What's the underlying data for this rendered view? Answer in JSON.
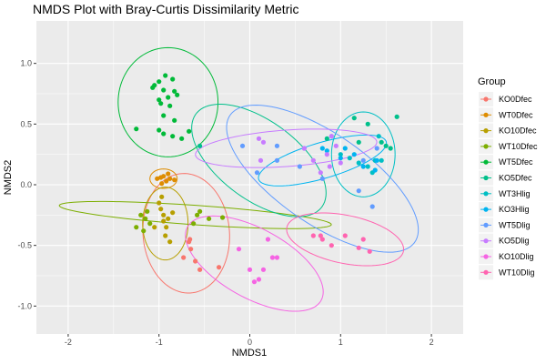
{
  "chart_data": {
    "type": "scatter",
    "title": "NMDS Plot with Bray-Curtis Dissimilarity Metric",
    "xlabel": "NMDS1",
    "ylabel": "NMDS2",
    "xlim": [
      -2.35,
      2.35
    ],
    "ylim": [
      -1.23,
      1.35
    ],
    "xticks": [
      -2,
      -1,
      0,
      1,
      2
    ],
    "yticks": [
      -1.0,
      -0.5,
      0.0,
      0.5,
      1.0
    ],
    "ytick_labels": [
      "-1.0",
      "-0.5",
      "0.0",
      "0.5",
      "1.0"
    ],
    "grid": true,
    "panel_background": "#ebebeb",
    "grid_color": "#ffffff",
    "legend": {
      "title": "Group",
      "position": "right"
    },
    "series": [
      {
        "name": "KO0Dfec",
        "color": "#F8766D",
        "x": [
          -0.65,
          -0.66,
          -0.73,
          -0.6,
          -0.55,
          -0.67,
          -0.34
        ],
        "y": [
          -0.53,
          -0.45,
          -0.6,
          -0.63,
          -0.7,
          -0.47,
          -0.68
        ],
        "ellipse": {
          "cx": -0.7,
          "cy": -0.4,
          "rx": 0.5,
          "ry": 0.47,
          "angle": -60
        }
      },
      {
        "name": "WT0Dfec",
        "color": "#DE8C00",
        "x": [
          -1.02,
          -0.95,
          -0.9,
          -0.88,
          -0.92,
          -0.97,
          -0.83,
          -0.98
        ],
        "y": [
          0.05,
          0.07,
          0.09,
          0.05,
          0.03,
          0.01,
          0.04,
          0.06
        ],
        "ellipse": {
          "cx": -0.95,
          "cy": 0.05,
          "rx": 0.15,
          "ry": 0.08,
          "angle": 0
        }
      },
      {
        "name": "KO10Dfec",
        "color": "#B79F00",
        "x": [
          -1.0,
          -0.98,
          -0.95,
          -0.9,
          -0.85,
          -0.92,
          -0.93,
          -1.05,
          -0.88,
          -0.95,
          -0.97
        ],
        "y": [
          -0.15,
          -0.2,
          -0.25,
          -0.28,
          -0.23,
          -0.35,
          -0.42,
          -0.35,
          -0.47,
          -0.3,
          -0.1
        ],
        "ellipse": {
          "cx": -0.93,
          "cy": -0.32,
          "rx": 0.25,
          "ry": 0.3,
          "angle": 0
        }
      },
      {
        "name": "WT10Dfec",
        "color": "#7CAE00",
        "x": [
          -1.25,
          -1.15,
          -1.1,
          -1.2,
          -1.17,
          -1.13,
          -0.62,
          -0.55,
          -0.45,
          -0.3,
          -0.58
        ],
        "y": [
          -0.35,
          -0.28,
          -0.32,
          -0.25,
          -0.38,
          -0.22,
          -0.32,
          -0.22,
          -0.28,
          -0.27,
          -0.25
        ],
        "ellipse": {
          "cx": -0.6,
          "cy": -0.25,
          "rx": 1.5,
          "ry": 0.08,
          "angle": -3
        }
      },
      {
        "name": "WT5Dfec",
        "color": "#00BA38",
        "x": [
          -1.05,
          -1.0,
          -0.93,
          -0.85,
          -0.83,
          -0.95,
          -0.9,
          -1.0,
          -0.98,
          -0.88,
          -0.95,
          -0.83,
          -1.07,
          -1.25,
          -0.95,
          -0.85,
          -0.75,
          -0.67,
          -0.8,
          -1.0
        ],
        "y": [
          0.82,
          0.85,
          0.9,
          0.87,
          0.77,
          0.78,
          0.72,
          0.7,
          0.67,
          0.65,
          0.57,
          0.53,
          0.8,
          0.46,
          0.42,
          0.4,
          0.38,
          0.44,
          0.74,
          0.45
        ],
        "ellipse": {
          "cx": -0.9,
          "cy": 0.68,
          "rx": 0.55,
          "ry": 0.45,
          "angle": 0
        }
      },
      {
        "name": "KO5Dfec",
        "color": "#00C08B",
        "x": [
          -0.55,
          1.15,
          1.3,
          1.2,
          1.45,
          1.55,
          1.62,
          1.5,
          0.85
        ],
        "y": [
          0.32,
          0.55,
          0.5,
          0.35,
          0.35,
          0.3,
          0.56,
          0.32,
          0.38
        ],
        "ellipse": {
          "cx": 0.1,
          "cy": 0.2,
          "rx": 0.35,
          "ry": 0.8,
          "angle": 65
        }
      },
      {
        "name": "WT3Hlig",
        "color": "#00BFC4",
        "x": [
          1.1,
          1.0,
          1.42,
          1.38,
          1.2,
          1.3,
          1.35,
          1.45
        ],
        "y": [
          0.22,
          0.25,
          0.4,
          0.2,
          0.18,
          0.15,
          0.1,
          0.2
        ],
        "ellipse": {
          "cx": 1.25,
          "cy": 0.25,
          "rx": 0.35,
          "ry": 0.35,
          "angle": 0
        }
      },
      {
        "name": "KO3Hlig",
        "color": "#00B4F0",
        "x": [
          0.8,
          1.0,
          1.05,
          1.15,
          0.85,
          1.4,
          1.38,
          1.25
        ],
        "y": [
          0.3,
          0.22,
          0.3,
          0.25,
          0.28,
          0.2,
          0.12,
          0.15
        ],
        "ellipse": {
          "cx": 0.8,
          "cy": 0.2,
          "rx": 0.72,
          "ry": 0.15,
          "angle": 12
        }
      },
      {
        "name": "WT5Dlig",
        "color": "#619CFF",
        "x": [
          -0.08,
          0.08,
          0.3,
          0.55,
          0.8,
          0.9,
          1.2,
          1.35,
          1.4,
          1.25,
          0.3,
          0.6
        ],
        "y": [
          0.32,
          0.1,
          0.2,
          0.15,
          0.05,
          0.4,
          -0.05,
          -0.18,
          0.3,
          0.2,
          0.32,
          0.3
        ],
        "ellipse": {
          "cx": 0.8,
          "cy": 0.05,
          "rx": 1.15,
          "ry": 0.4,
          "angle": -25
        }
      },
      {
        "name": "KO5Dlig",
        "color": "#C77CFF",
        "x": [
          0.1,
          0.15,
          0.12,
          0.6,
          0.7,
          0.85,
          0.9,
          0.95,
          0.88,
          0.78,
          1.0
        ],
        "y": [
          0.38,
          0.35,
          0.2,
          0.3,
          0.2,
          0.25,
          0.4,
          0.32,
          0.15,
          0.1,
          0.18
        ],
        "ellipse": {
          "cx": 0.4,
          "cy": 0.3,
          "rx": 1.0,
          "ry": 0.15,
          "angle": 3
        }
      },
      {
        "name": "KO10Dlig",
        "color": "#F564E3",
        "x": [
          -0.12,
          0.0,
          0.05,
          0.2,
          0.25,
          0.15,
          0.1,
          0.3
        ],
        "y": [
          -0.53,
          -0.7,
          -0.8,
          -0.45,
          -0.6,
          -0.7,
          -0.78,
          -0.6
        ],
        "ellipse": {
          "cx": 0.05,
          "cy": -0.65,
          "rx": 0.8,
          "ry": 0.3,
          "angle": -20
        }
      },
      {
        "name": "WT10Dlig",
        "color": "#FF64B0",
        "x": [
          0.7,
          0.78,
          0.8,
          0.9,
          1.05,
          1.2,
          1.25,
          1.32
        ],
        "y": [
          -0.42,
          -0.42,
          -0.45,
          -0.5,
          -0.42,
          -0.52,
          -0.45,
          -0.55
        ],
        "ellipse": {
          "cx": 1.05,
          "cy": -0.45,
          "rx": 0.65,
          "ry": 0.2,
          "angle": -8
        }
      }
    ]
  }
}
